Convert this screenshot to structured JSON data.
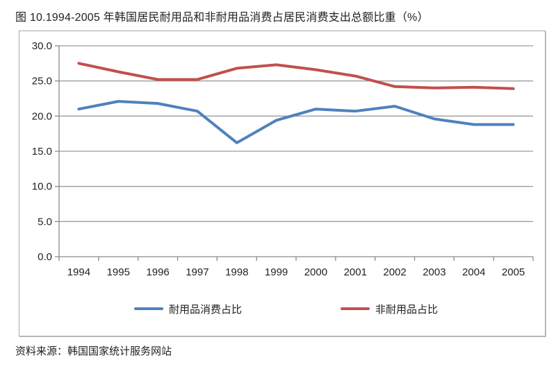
{
  "page": {
    "title": "图 10.1994-2005 年韩国居民耐用品和非耐用品消费占居民消费支出总额比重（%）",
    "source": "资料来源：韩国国家统计服务网站"
  },
  "chart_data": {
    "type": "line",
    "title": "图 10.1994-2005 年韩国居民耐用品和非耐用品消费占居民消费支出总额比重（%）",
    "categories": [
      "1994",
      "1995",
      "1996",
      "1997",
      "1998",
      "1999",
      "2000",
      "2001",
      "2002",
      "2003",
      "2004",
      "2005"
    ],
    "series": [
      {
        "name": "耐用品消费占比",
        "color": "#4F81BD",
        "values": [
          21.0,
          22.1,
          21.8,
          20.7,
          16.2,
          19.4,
          21.0,
          20.7,
          21.4,
          19.6,
          18.8,
          18.8
        ]
      },
      {
        "name": "非耐用品占比",
        "color": "#C0504D",
        "values": [
          27.5,
          26.3,
          25.2,
          25.2,
          26.8,
          27.3,
          26.6,
          25.7,
          24.2,
          24.0,
          24.1,
          23.9
        ]
      }
    ],
    "xlabel": "",
    "ylabel": "",
    "ylim": [
      0,
      30
    ],
    "ytick_step": 5,
    "ytick_labels": [
      "0.0",
      "5.0",
      "10.0",
      "15.0",
      "20.0",
      "25.0",
      "30.0"
    ],
    "grid": true,
    "legend_position": "bottom",
    "colors": {
      "gridline": "#9c9c9c",
      "axis": "#8a8a8a",
      "tick_text": "#1f1f1f",
      "border": "#a6a6a6"
    }
  }
}
